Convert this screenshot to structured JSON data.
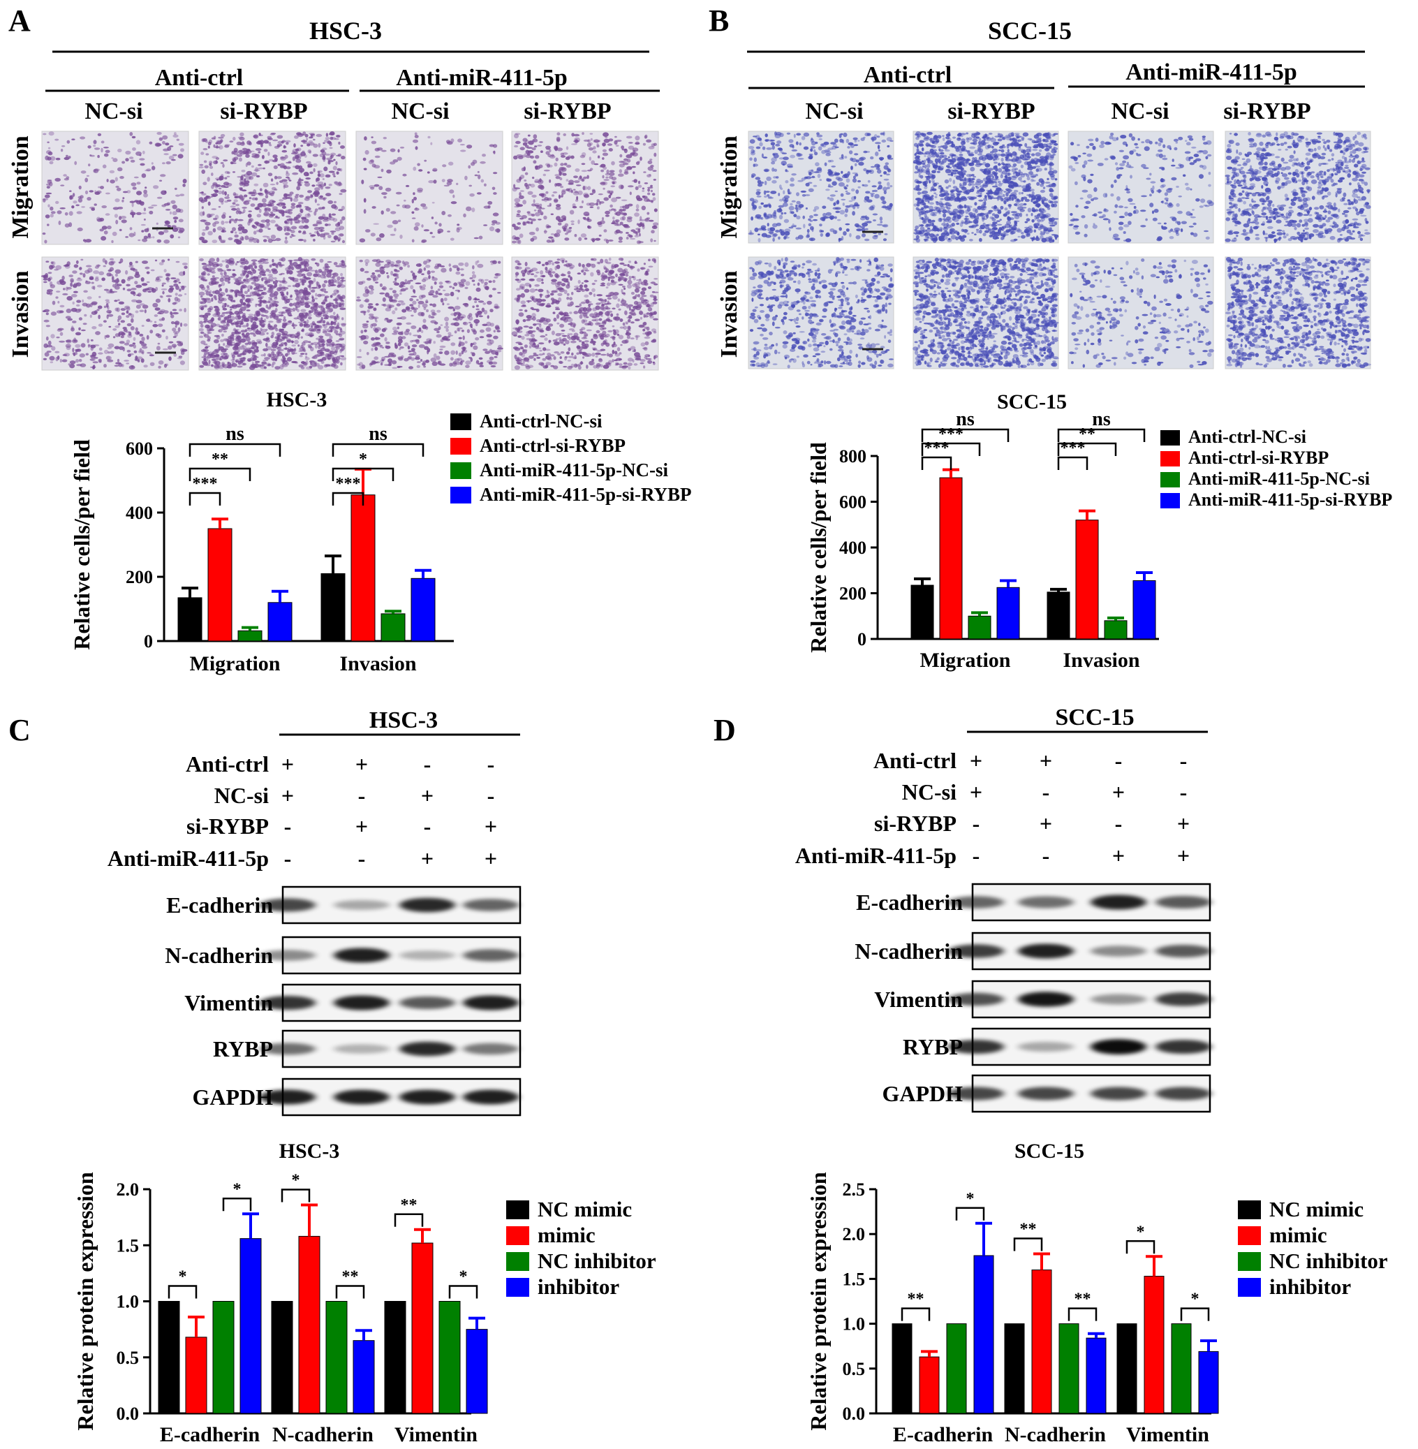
{
  "panels": {
    "A": {
      "letter": "A",
      "cell_line": "HSC-3",
      "groups": [
        "Anti-ctrl",
        "Anti-miR-411-5p"
      ],
      "columns": [
        "NC-si",
        "si-RYBP",
        "NC-si",
        "si-RYBP"
      ],
      "rows": [
        "Migration",
        "Invasion"
      ]
    },
    "B": {
      "letter": "B",
      "cell_line": "SCC-15",
      "groups": [
        "Anti-ctrl",
        "Anti-miR-411-5p"
      ],
      "columns": [
        "NC-si",
        "si-RYBP",
        "NC-si",
        "si-RYBP"
      ],
      "rows": [
        "Migration",
        "Invasion"
      ]
    },
    "C": {
      "letter": "C",
      "cell_line": "HSC-3",
      "conditions": [
        "Anti-ctrl",
        "NC-si",
        "si-RYBP",
        "Anti-miR-411-5p"
      ],
      "signs": [
        [
          "+",
          "+",
          "-",
          "-"
        ],
        [
          "+",
          "-",
          "+",
          "-"
        ],
        [
          "-",
          "+",
          "-",
          "+"
        ],
        [
          "-",
          "-",
          "+",
          "+"
        ]
      ],
      "blots": [
        "E-cadherin",
        "N-cadherin",
        "Vimentin",
        "RYBP",
        "GAPDH"
      ],
      "band_intensity": [
        [
          0.7,
          0.2,
          0.85,
          0.55
        ],
        [
          0.35,
          0.9,
          0.15,
          0.55
        ],
        [
          0.8,
          0.9,
          0.6,
          0.9
        ],
        [
          0.5,
          0.15,
          0.85,
          0.45
        ],
        [
          0.9,
          0.9,
          0.9,
          0.9
        ]
      ]
    },
    "D": {
      "letter": "D",
      "cell_line": "SCC-15",
      "conditions": [
        "Anti-ctrl",
        "NC-si",
        "si-RYBP",
        "Anti-miR-411-5p"
      ],
      "signs": [
        [
          "+",
          "+",
          "-",
          "-"
        ],
        [
          "+",
          "-",
          "+",
          "-"
        ],
        [
          "-",
          "+",
          "-",
          "+"
        ],
        [
          "-",
          "-",
          "+",
          "+"
        ]
      ],
      "blots": [
        "E-cadherin",
        "N-cadherin",
        "Vimentin",
        "RYBP",
        "GAPDH"
      ],
      "band_intensity": [
        [
          0.55,
          0.5,
          0.9,
          0.6
        ],
        [
          0.75,
          0.9,
          0.35,
          0.6
        ],
        [
          0.65,
          0.95,
          0.3,
          0.75
        ],
        [
          0.8,
          0.2,
          1.0,
          0.8
        ],
        [
          0.7,
          0.7,
          0.7,
          0.7
        ]
      ]
    }
  },
  "colors": {
    "black": "#000000",
    "red": "#ff0000",
    "green": "#008000",
    "blue": "#0000ff",
    "stain_a": "#7a4d98",
    "stain_b": "#4a4fb8"
  },
  "chart_data": [
    {
      "id": "A",
      "type": "bar",
      "title": "HSC-3",
      "ylabel": "Relative cells/per field",
      "categories": [
        "Migration",
        "Invasion"
      ],
      "ylim": [
        0,
        600
      ],
      "yticks": [
        "0",
        "200",
        "400",
        "600"
      ],
      "series": [
        {
          "name": "Anti-ctrl-NC-si",
          "color": "#000000",
          "values": [
            135,
            210
          ],
          "errors": [
            30,
            55
          ]
        },
        {
          "name": "Anti-ctrl-si-RYBP",
          "color": "#ff0000",
          "values": [
            350,
            455
          ],
          "errors": [
            30,
            80
          ]
        },
        {
          "name": "Anti-miR-411-5p-NC-si",
          "color": "#008000",
          "values": [
            32,
            85
          ],
          "errors": [
            10,
            8
          ]
        },
        {
          "name": "Anti-miR-411-5p-si-RYBP",
          "color": "#0000ff",
          "values": [
            120,
            195
          ],
          "errors": [
            35,
            25
          ]
        }
      ],
      "significance": [
        {
          "category": 0,
          "from": 0,
          "to": 1,
          "label": "***"
        },
        {
          "category": 0,
          "from": 0,
          "to": 2,
          "label": "**"
        },
        {
          "category": 0,
          "from": 0,
          "to": 3,
          "label": "ns"
        },
        {
          "category": 1,
          "from": 0,
          "to": 1,
          "label": "***"
        },
        {
          "category": 1,
          "from": 0,
          "to": 2,
          "label": "*"
        },
        {
          "category": 1,
          "from": 0,
          "to": 3,
          "label": "ns"
        }
      ]
    },
    {
      "id": "B",
      "type": "bar",
      "title": "SCC-15",
      "ylabel": "Relative cells/per field",
      "categories": [
        "Migration",
        "Invasion"
      ],
      "ylim": [
        0,
        800
      ],
      "yticks": [
        "0",
        "200",
        "400",
        "600",
        "800"
      ],
      "series": [
        {
          "name": "Anti-ctrl-NC-si",
          "color": "#000000",
          "values": [
            235,
            205
          ],
          "errors": [
            28,
            12
          ]
        },
        {
          "name": "Anti-ctrl-si-RYBP",
          "color": "#ff0000",
          "values": [
            705,
            520
          ],
          "errors": [
            35,
            40
          ]
        },
        {
          "name": "Anti-miR-411-5p-NC-si",
          "color": "#008000",
          "values": [
            100,
            80
          ],
          "errors": [
            15,
            12
          ]
        },
        {
          "name": "Anti-miR-411-5p-si-RYBP",
          "color": "#0000ff",
          "values": [
            225,
            255
          ],
          "errors": [
            30,
            35
          ]
        }
      ],
      "significance": [
        {
          "category": 0,
          "from": 0,
          "to": 1,
          "label": "***"
        },
        {
          "category": 0,
          "from": 0,
          "to": 2,
          "label": "***"
        },
        {
          "category": 0,
          "from": 0,
          "to": 3,
          "label": "ns"
        },
        {
          "category": 1,
          "from": 0,
          "to": 1,
          "label": "***"
        },
        {
          "category": 1,
          "from": 0,
          "to": 2,
          "label": "**"
        },
        {
          "category": 1,
          "from": 0,
          "to": 3,
          "label": "ns"
        }
      ]
    },
    {
      "id": "C",
      "type": "bar",
      "title": "HSC-3",
      "ylabel": "Relative protein expression",
      "categories": [
        "E-cadherin",
        "N-cadherin",
        "Vimentin"
      ],
      "ylim": [
        0,
        2.0
      ],
      "yticks": [
        "0.0",
        "0.5",
        "1.0",
        "1.5",
        "2.0"
      ],
      "series": [
        {
          "name": "NC mimic",
          "color": "#000000",
          "values": [
            1.0,
            1.0,
            1.0
          ],
          "errors": [
            0,
            0,
            0
          ]
        },
        {
          "name": "mimic",
          "color": "#ff0000",
          "values": [
            0.68,
            1.58,
            1.52
          ],
          "errors": [
            0.18,
            0.28,
            0.12
          ]
        },
        {
          "name": "NC inhibitor",
          "color": "#008000",
          "values": [
            1.0,
            1.0,
            1.0
          ],
          "errors": [
            0,
            0,
            0
          ]
        },
        {
          "name": "inhibitor",
          "color": "#0000ff",
          "values": [
            1.56,
            0.65,
            0.75
          ],
          "errors": [
            0.22,
            0.09,
            0.1
          ]
        }
      ],
      "significance": [
        {
          "category": 0,
          "from": 0,
          "to": 1,
          "label": "*"
        },
        {
          "category": 0,
          "from": 2,
          "to": 3,
          "label": "*"
        },
        {
          "category": 1,
          "from": 0,
          "to": 1,
          "label": "*"
        },
        {
          "category": 1,
          "from": 2,
          "to": 3,
          "label": "**"
        },
        {
          "category": 2,
          "from": 0,
          "to": 1,
          "label": "**"
        },
        {
          "category": 2,
          "from": 2,
          "to": 3,
          "label": "*"
        }
      ]
    },
    {
      "id": "D",
      "type": "bar",
      "title": "SCC-15",
      "ylabel": "Relative protein expression",
      "categories": [
        "E-cadherin",
        "N-cadherin",
        "Vimentin"
      ],
      "ylim": [
        0,
        2.5
      ],
      "yticks": [
        "0.0",
        "0.5",
        "1.0",
        "1.5",
        "2.0",
        "2.5"
      ],
      "series": [
        {
          "name": "NC mimic",
          "color": "#000000",
          "values": [
            1.0,
            1.0,
            1.0
          ],
          "errors": [
            0,
            0,
            0
          ]
        },
        {
          "name": "mimic",
          "color": "#ff0000",
          "values": [
            0.63,
            1.6,
            1.53
          ],
          "errors": [
            0.06,
            0.18,
            0.22
          ]
        },
        {
          "name": "NC inhibitor",
          "color": "#008000",
          "values": [
            1.0,
            1.0,
            1.0
          ],
          "errors": [
            0,
            0,
            0
          ]
        },
        {
          "name": "inhibitor",
          "color": "#0000ff",
          "values": [
            1.76,
            0.84,
            0.69
          ],
          "errors": [
            0.36,
            0.05,
            0.12
          ]
        }
      ],
      "significance": [
        {
          "category": 0,
          "from": 0,
          "to": 1,
          "label": "**"
        },
        {
          "category": 0,
          "from": 2,
          "to": 3,
          "label": "*"
        },
        {
          "category": 1,
          "from": 0,
          "to": 1,
          "label": "**"
        },
        {
          "category": 1,
          "from": 2,
          "to": 3,
          "label": "**"
        },
        {
          "category": 2,
          "from": 0,
          "to": 1,
          "label": "*"
        },
        {
          "category": 2,
          "from": 2,
          "to": 3,
          "label": "*"
        }
      ]
    }
  ]
}
